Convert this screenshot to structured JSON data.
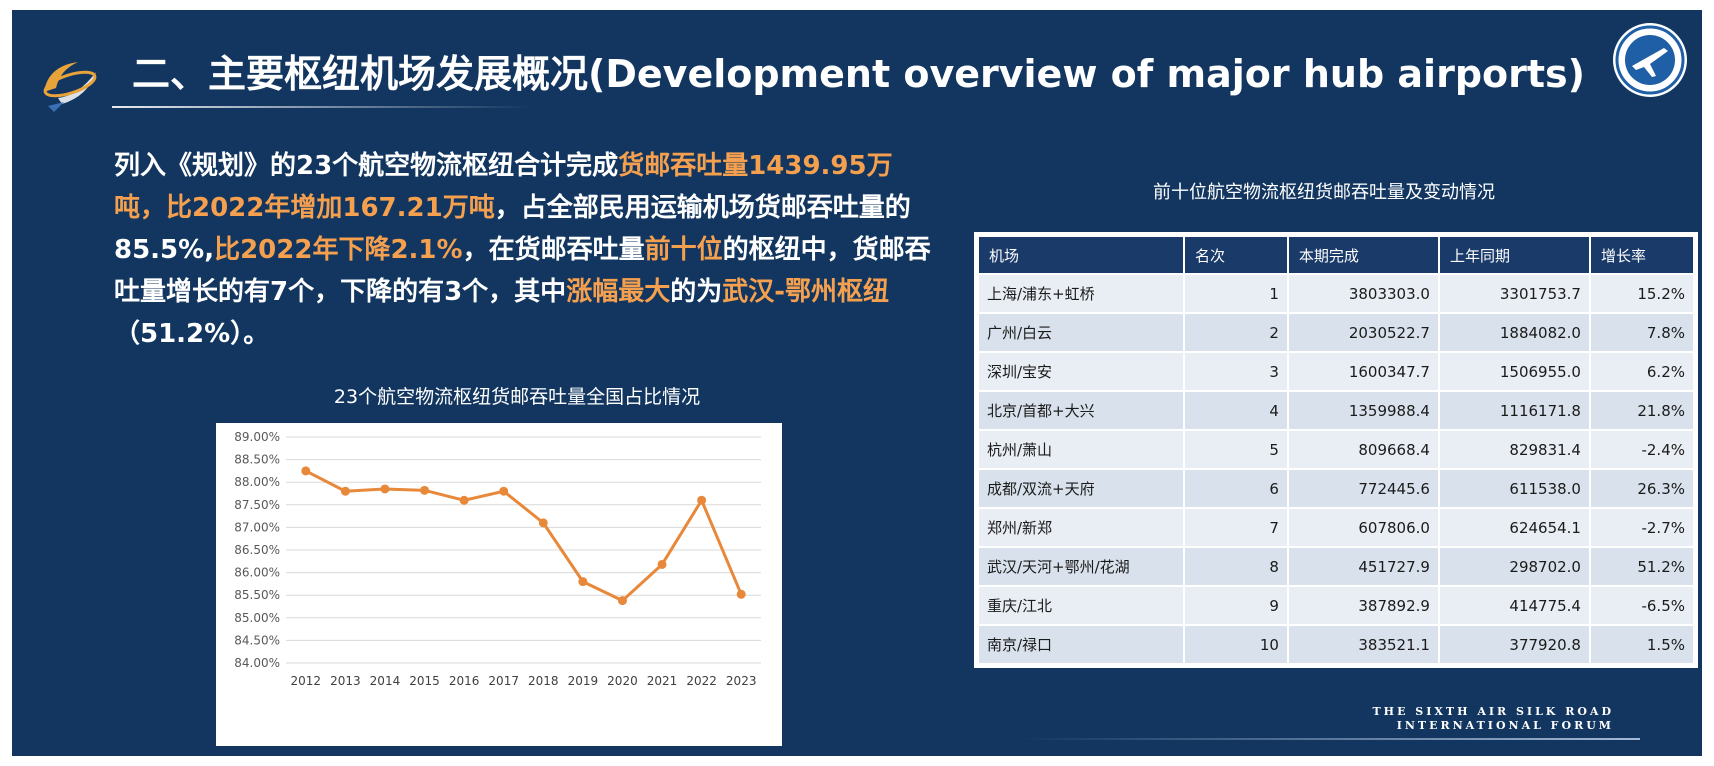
{
  "title": "二、主要枢纽机场发展概况(Development overview of major hub airports)",
  "paragraph": [
    {
      "text": "列入《规划》的23个航空物流枢纽合计完成",
      "hl": false
    },
    {
      "text": "货邮吞吐量1439.95万吨，比2022年增加167.21万吨",
      "hl": true
    },
    {
      "text": "，占全部民用运输机场货邮吞吐量的85.5%,",
      "hl": false
    },
    {
      "text": "比2022年下降2.1%",
      "hl": true
    },
    {
      "text": "，在货邮吞吐量",
      "hl": false
    },
    {
      "text": "前十位",
      "hl": true
    },
    {
      "text": "的枢纽中，货邮吞吐量增长的有7个，下降的有3个，其中",
      "hl": false
    },
    {
      "text": "涨幅最大",
      "hl": true
    },
    {
      "text": "的为",
      "hl": false
    },
    {
      "text": "武汉-鄂州枢纽",
      "hl": true
    },
    {
      "text": "（51.2%）。",
      "hl": false
    }
  ],
  "chart_data": {
    "type": "line",
    "title": "23个航空物流枢纽货邮吞吐量全国占比情况",
    "categories": [
      "2012",
      "2013",
      "2014",
      "2015",
      "2016",
      "2017",
      "2018",
      "2019",
      "2020",
      "2021",
      "2022",
      "2023"
    ],
    "values": [
      88.25,
      87.8,
      87.85,
      87.82,
      87.6,
      87.8,
      87.1,
      85.8,
      85.38,
      86.18,
      87.6,
      85.52
    ],
    "ylim": [
      84.0,
      89.0
    ],
    "yticks": [
      "84.00%",
      "84.50%",
      "85.00%",
      "85.50%",
      "86.00%",
      "86.50%",
      "87.00%",
      "87.50%",
      "88.00%",
      "88.50%",
      "89.00%"
    ],
    "line_color": "#e8883a",
    "grid": true
  },
  "table": {
    "title": "前十位航空物流枢纽货邮吞吐量及变动情况",
    "headers": [
      "机场",
      "名次",
      "本期完成",
      "上年同期",
      "增长率"
    ],
    "rows": [
      [
        "上海/浦东+虹桥",
        "1",
        "3803303.0",
        "3301753.7",
        "15.2%"
      ],
      [
        "广州/白云",
        "2",
        "2030522.7",
        "1884082.0",
        "7.8%"
      ],
      [
        "深圳/宝安",
        "3",
        "1600347.7",
        "1506955.0",
        "6.2%"
      ],
      [
        "北京/首都+大兴",
        "4",
        "1359988.4",
        "1116171.8",
        "21.8%"
      ],
      [
        "杭州/萧山",
        "5",
        "809668.4",
        "829831.4",
        "-2.4%"
      ],
      [
        "成都/双流+天府",
        "6",
        "772445.6",
        "611538.0",
        "26.3%"
      ],
      [
        "郑州/新郑",
        "7",
        "607806.0",
        "624654.1",
        "-2.7%"
      ],
      [
        "武汉/天河+鄂州/花湖",
        "8",
        "451727.9",
        "298702.0",
        "51.2%"
      ],
      [
        "重庆/江北",
        "9",
        "387892.9",
        "414775.4",
        "-6.5%"
      ],
      [
        "南京/禄口",
        "10",
        "383521.1",
        "377920.8",
        "1.5%"
      ]
    ]
  },
  "forum": {
    "line1": "THE SIXTH AIR SILK ROAD",
    "line2": "INTERNATIONAL FORUM"
  },
  "colors": {
    "background": "#12365f",
    "highlight": "#f5a04f",
    "header_cell": "#1a3a6a"
  },
  "icons": {
    "left_logo": "asrif-logo-icon",
    "right_logo": "airplane-seal-icon"
  }
}
